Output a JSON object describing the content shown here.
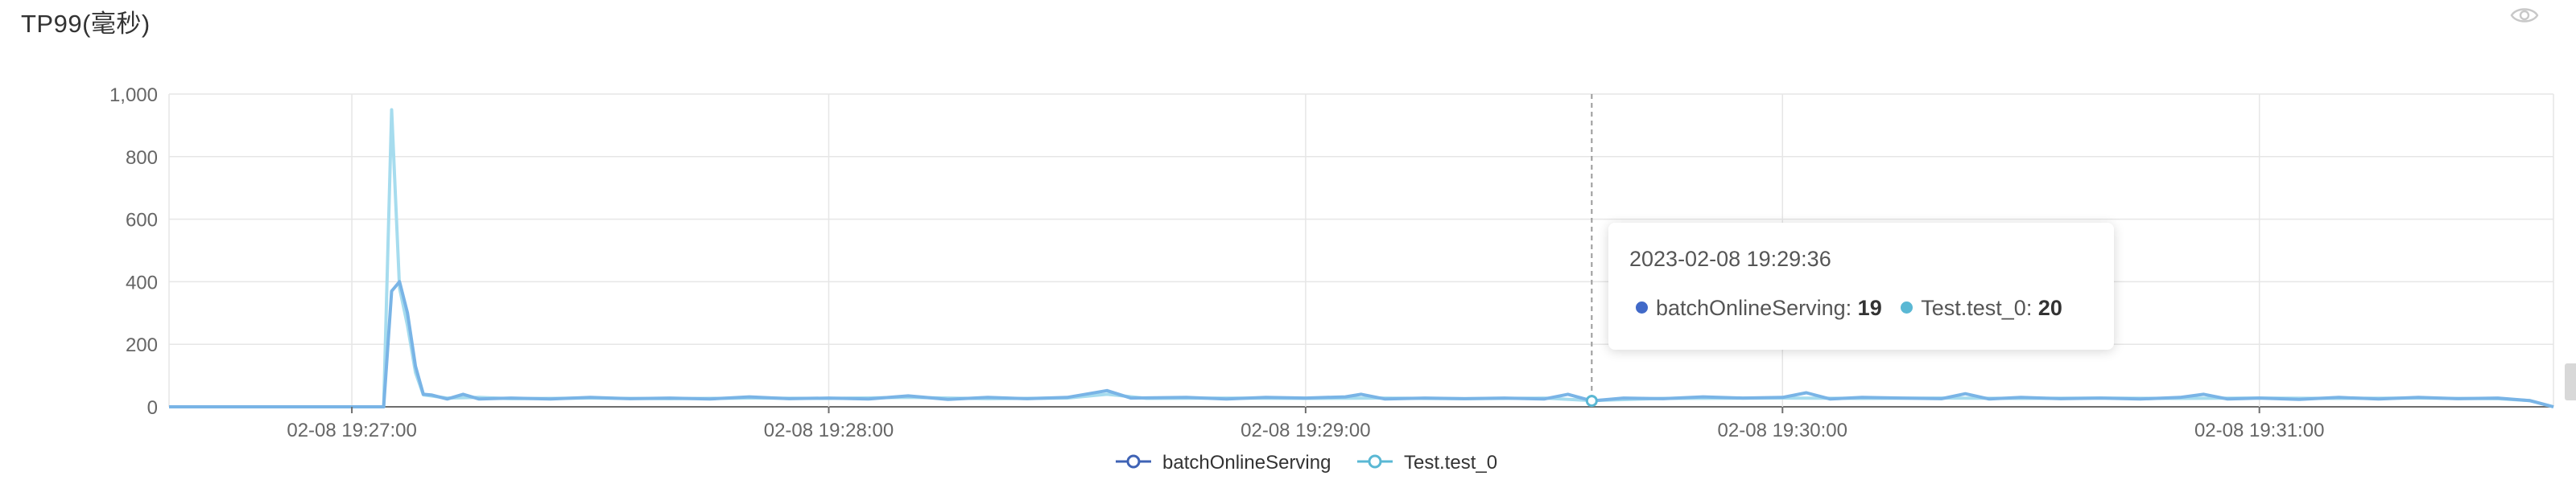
{
  "panel": {
    "title": "TP99(毫秒)",
    "visibility_icon": "eye-icon"
  },
  "tooltip": {
    "time": "2023-02-08 19:29:36",
    "items": [
      {
        "name": "batchOnlineServing",
        "value": "19",
        "color": "#4169c8"
      },
      {
        "name": "Test.test_0",
        "value": "20",
        "color": "#5ab8d4"
      }
    ]
  },
  "chart_data": {
    "type": "line",
    "title": "TP99(毫秒)",
    "xlabel": "",
    "ylabel": "",
    "x_range": [
      "2023-02-08 19:26:37",
      "2023-02-08 19:31:37"
    ],
    "ylim": [
      0,
      1000
    ],
    "yticks": [
      0,
      200,
      400,
      600,
      800,
      1000
    ],
    "ytick_labels": [
      "0",
      "200",
      "400",
      "600",
      "800",
      "1,000"
    ],
    "xticks": [
      "2023-02-08 19:27:00",
      "2023-02-08 19:28:00",
      "2023-02-08 19:29:00",
      "2023-02-08 19:30:00",
      "2023-02-08 19:31:00"
    ],
    "xtick_labels": [
      "02-08 19:27:00",
      "02-08 19:28:00",
      "02-08 19:29:00",
      "02-08 19:30:00",
      "02-08 19:31:00"
    ],
    "crosshair_x": "2023-02-08 19:29:36",
    "grid": true,
    "legend_position": "bottom-center",
    "series": [
      {
        "name": "batchOnlineServing",
        "color": "#79b4e6",
        "points": [
          [
            "2023-02-08 19:26:37",
            0
          ],
          [
            "2023-02-08 19:26:47",
            0
          ],
          [
            "2023-02-08 19:26:57",
            0
          ],
          [
            "2023-02-08 19:27:04",
            0
          ],
          [
            "2023-02-08 19:27:05",
            370
          ],
          [
            "2023-02-08 19:27:06",
            400
          ],
          [
            "2023-02-08 19:27:07",
            300
          ],
          [
            "2023-02-08 19:27:08",
            130
          ],
          [
            "2023-02-08 19:27:09",
            40
          ],
          [
            "2023-02-08 19:27:10",
            38
          ],
          [
            "2023-02-08 19:27:12",
            25
          ],
          [
            "2023-02-08 19:27:14",
            40
          ],
          [
            "2023-02-08 19:27:16",
            25
          ],
          [
            "2023-02-08 19:27:20",
            28
          ],
          [
            "2023-02-08 19:27:25",
            25
          ],
          [
            "2023-02-08 19:27:30",
            30
          ],
          [
            "2023-02-08 19:27:35",
            26
          ],
          [
            "2023-02-08 19:27:40",
            28
          ],
          [
            "2023-02-08 19:27:45",
            25
          ],
          [
            "2023-02-08 19:27:50",
            32
          ],
          [
            "2023-02-08 19:27:55",
            26
          ],
          [
            "2023-02-08 19:28:00",
            28
          ],
          [
            "2023-02-08 19:28:05",
            25
          ],
          [
            "2023-02-08 19:28:10",
            35
          ],
          [
            "2023-02-08 19:28:15",
            24
          ],
          [
            "2023-02-08 19:28:20",
            30
          ],
          [
            "2023-02-08 19:28:25",
            26
          ],
          [
            "2023-02-08 19:28:30",
            30
          ],
          [
            "2023-02-08 19:28:35",
            52
          ],
          [
            "2023-02-08 19:28:38",
            28
          ],
          [
            "2023-02-08 19:28:45",
            30
          ],
          [
            "2023-02-08 19:28:50",
            25
          ],
          [
            "2023-02-08 19:28:55",
            30
          ],
          [
            "2023-02-08 19:29:00",
            28
          ],
          [
            "2023-02-08 19:29:05",
            32
          ],
          [
            "2023-02-08 19:29:07",
            40
          ],
          [
            "2023-02-08 19:29:10",
            25
          ],
          [
            "2023-02-08 19:29:15",
            28
          ],
          [
            "2023-02-08 19:29:20",
            26
          ],
          [
            "2023-02-08 19:29:25",
            28
          ],
          [
            "2023-02-08 19:29:30",
            25
          ],
          [
            "2023-02-08 19:29:33",
            40
          ],
          [
            "2023-02-08 19:29:36",
            19
          ],
          [
            "2023-02-08 19:29:40",
            28
          ],
          [
            "2023-02-08 19:29:45",
            26
          ],
          [
            "2023-02-08 19:29:50",
            32
          ],
          [
            "2023-02-08 19:29:55",
            28
          ],
          [
            "2023-02-08 19:30:00",
            30
          ],
          [
            "2023-02-08 19:30:03",
            45
          ],
          [
            "2023-02-08 19:30:06",
            25
          ],
          [
            "2023-02-08 19:30:10",
            30
          ],
          [
            "2023-02-08 19:30:15",
            28
          ],
          [
            "2023-02-08 19:30:20",
            26
          ],
          [
            "2023-02-08 19:30:23",
            42
          ],
          [
            "2023-02-08 19:30:26",
            25
          ],
          [
            "2023-02-08 19:30:30",
            30
          ],
          [
            "2023-02-08 19:30:35",
            26
          ],
          [
            "2023-02-08 19:30:40",
            28
          ],
          [
            "2023-02-08 19:30:45",
            25
          ],
          [
            "2023-02-08 19:30:50",
            30
          ],
          [
            "2023-02-08 19:30:53",
            40
          ],
          [
            "2023-02-08 19:30:56",
            25
          ],
          [
            "2023-02-08 19:31:00",
            28
          ],
          [
            "2023-02-08 19:31:05",
            24
          ],
          [
            "2023-02-08 19:31:10",
            30
          ],
          [
            "2023-02-08 19:31:15",
            25
          ],
          [
            "2023-02-08 19:31:20",
            30
          ],
          [
            "2023-02-08 19:31:25",
            26
          ],
          [
            "2023-02-08 19:31:30",
            28
          ],
          [
            "2023-02-08 19:31:34",
            20
          ],
          [
            "2023-02-08 19:31:37",
            0
          ]
        ]
      },
      {
        "name": "Test.test_0",
        "color": "#a6dcee",
        "points": [
          [
            "2023-02-08 19:26:37",
            0
          ],
          [
            "2023-02-08 19:26:47",
            0
          ],
          [
            "2023-02-08 19:26:57",
            0
          ],
          [
            "2023-02-08 19:27:04",
            0
          ],
          [
            "2023-02-08 19:27:05",
            950
          ],
          [
            "2023-02-08 19:27:06",
            380
          ],
          [
            "2023-02-08 19:27:07",
            260
          ],
          [
            "2023-02-08 19:27:08",
            110
          ],
          [
            "2023-02-08 19:27:09",
            38
          ],
          [
            "2023-02-08 19:27:12",
            28
          ],
          [
            "2023-02-08 19:27:16",
            30
          ],
          [
            "2023-02-08 19:27:20",
            26
          ],
          [
            "2023-02-08 19:27:30",
            28
          ],
          [
            "2023-02-08 19:27:40",
            26
          ],
          [
            "2023-02-08 19:27:50",
            28
          ],
          [
            "2023-02-08 19:28:00",
            27
          ],
          [
            "2023-02-08 19:28:10",
            30
          ],
          [
            "2023-02-08 19:28:20",
            26
          ],
          [
            "2023-02-08 19:28:30",
            28
          ],
          [
            "2023-02-08 19:28:35",
            40
          ],
          [
            "2023-02-08 19:28:40",
            27
          ],
          [
            "2023-02-08 19:28:50",
            28
          ],
          [
            "2023-02-08 19:29:00",
            27
          ],
          [
            "2023-02-08 19:29:10",
            28
          ],
          [
            "2023-02-08 19:29:20",
            26
          ],
          [
            "2023-02-08 19:29:30",
            28
          ],
          [
            "2023-02-08 19:29:36",
            20
          ],
          [
            "2023-02-08 19:29:45",
            27
          ],
          [
            "2023-02-08 19:30:00",
            28
          ],
          [
            "2023-02-08 19:30:10",
            27
          ],
          [
            "2023-02-08 19:30:20",
            28
          ],
          [
            "2023-02-08 19:30:30",
            27
          ],
          [
            "2023-02-08 19:30:40",
            28
          ],
          [
            "2023-02-08 19:30:50",
            27
          ],
          [
            "2023-02-08 19:31:00",
            28
          ],
          [
            "2023-02-08 19:31:10",
            27
          ],
          [
            "2023-02-08 19:31:20",
            28
          ],
          [
            "2023-02-08 19:31:30",
            26
          ],
          [
            "2023-02-08 19:31:34",
            20
          ],
          [
            "2023-02-08 19:31:37",
            0
          ]
        ]
      }
    ]
  }
}
